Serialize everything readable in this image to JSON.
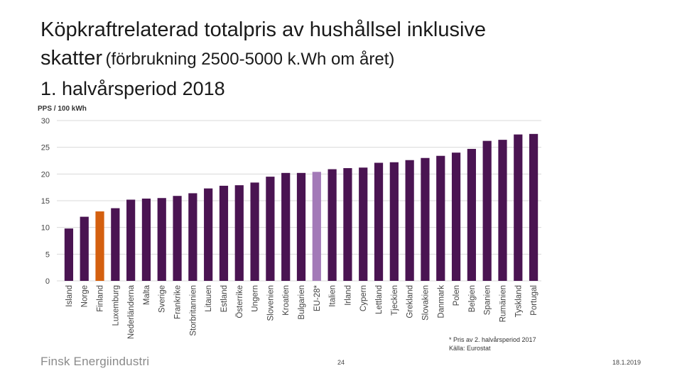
{
  "title": {
    "line1": "Köpkraftrelaterad totalpris av hushållsel inklusive",
    "line2_main": "skatter",
    "line2_sub": "(förbrukning 2500-5000 k.Wh om året)",
    "line3": "1. halvårsperiod 2018"
  },
  "footnote": {
    "line1": "* Pris av 2. halvårsperiod 2017",
    "line2": "Källa: Eurostat"
  },
  "footer": {
    "logo": "Finsk Energiindustri",
    "page_number": "24",
    "date": "18.1.2019"
  },
  "colors": {
    "bar": "#4a1452",
    "highlight_finland": "#d4600f",
    "highlight_eu": "#a37ab8",
    "grid": "#d9d9d9"
  },
  "chart_data": {
    "type": "bar",
    "ylabel": "PPS / 100 kWh",
    "ylim": [
      0,
      30
    ],
    "yticks": [
      0,
      5,
      10,
      15,
      20,
      25,
      30
    ],
    "grid": true,
    "categories": [
      "Island",
      "Norge",
      "Finland",
      "Luxemburg",
      "Nederländerna",
      "Malta",
      "Sverige",
      "Frankrike",
      "Storbritannien",
      "Litauen",
      "Estland",
      "Österrike",
      "Ungern",
      "Slovenien",
      "Kroatien",
      "Bulgarien",
      "EU-28*",
      "Italien",
      "Irland",
      "Cypern",
      "Lettland",
      "Tjeckien",
      "Grekland",
      "Slovakien",
      "Danmark",
      "Polen",
      "Belgien",
      "Spanien",
      "Rumänien",
      "Tyskland",
      "Portugal"
    ],
    "values": [
      9.8,
      12.0,
      13.0,
      13.6,
      15.2,
      15.4,
      15.5,
      15.9,
      16.4,
      17.3,
      17.8,
      17.9,
      18.4,
      19.5,
      20.2,
      20.2,
      20.4,
      20.9,
      21.1,
      21.2,
      22.1,
      22.2,
      22.6,
      23.0,
      23.4,
      24.0,
      24.7,
      26.2,
      26.4,
      27.4,
      27.5
    ],
    "highlights": {
      "Finland": "highlight_finland",
      "EU-28*": "highlight_eu"
    }
  }
}
